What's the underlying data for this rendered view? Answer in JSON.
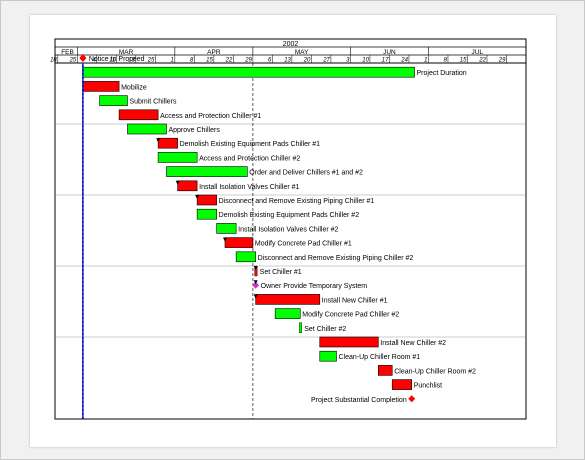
{
  "chart_data": {
    "type": "gantt",
    "year": "2002",
    "months": [
      {
        "label": "FEB",
        "start": "2002-02-17"
      },
      {
        "label": "MAR",
        "start": "2002-02-24"
      },
      {
        "label": "APR",
        "start": "2002-03-31"
      },
      {
        "label": "MAY",
        "start": "2002-04-28"
      },
      {
        "label": "JUN",
        "start": "2002-06-02"
      },
      {
        "label": "JUL",
        "start": "2002-06-30"
      }
    ],
    "week_ticks": [
      "18",
      "25",
      "4",
      "11",
      "18",
      "25",
      "1",
      "8",
      "15",
      "22",
      "29",
      "6",
      "13",
      "20",
      "27",
      "3",
      "10",
      "17",
      "24",
      "1",
      "8",
      "15",
      "22",
      "29"
    ],
    "x_range": [
      "2002-02-16",
      "2002-08-04"
    ],
    "status_line": "2002-02-26",
    "reference_line": "2002-04-28",
    "colors": {
      "complete": "#00ff00",
      "remaining": "#ff0000",
      "milestone": "#ff0000",
      "summary_milestone": "#cc33cc",
      "status_line": "#0000aa"
    },
    "tasks": [
      {
        "label": "Notice to Proceed",
        "type": "milestone",
        "date": "2002-02-26"
      },
      {
        "label": "Project Duration",
        "type": "bar",
        "start": "2002-02-26",
        "end": "2002-06-25",
        "color": "complete"
      },
      {
        "label": "Mobilize",
        "type": "bar",
        "start": "2002-02-26",
        "end": "2002-03-11",
        "color": "remaining"
      },
      {
        "label": "Submit Chillers",
        "type": "bar",
        "start": "2002-03-04",
        "end": "2002-03-14",
        "color": "complete"
      },
      {
        "label": "Access and Protection Chiller #1",
        "type": "bar",
        "start": "2002-03-11",
        "end": "2002-03-25",
        "color": "remaining"
      },
      {
        "label": "Approve Chillers",
        "type": "bar",
        "start": "2002-03-14",
        "end": "2002-03-28",
        "color": "complete"
      },
      {
        "label": "Demolish Existing Equipment Pads Chiller #1",
        "type": "bar",
        "start": "2002-03-25",
        "end": "2002-04-01",
        "color": "remaining"
      },
      {
        "label": "Access and Protection Chiller #2",
        "type": "bar",
        "start": "2002-03-25",
        "end": "2002-04-08",
        "color": "complete"
      },
      {
        "label": "Order and Deliver Chillers #1 and #2",
        "type": "bar",
        "start": "2002-03-28",
        "end": "2002-04-26",
        "color": "complete"
      },
      {
        "label": "Install Isolation Valves Chiller #1",
        "type": "bar",
        "start": "2002-04-01",
        "end": "2002-04-08",
        "color": "remaining"
      },
      {
        "label": "Disconnect and Remove Existing Piping Chiller #1",
        "type": "bar",
        "start": "2002-04-08",
        "end": "2002-04-15",
        "color": "remaining"
      },
      {
        "label": "Demolish Existing Equipment Pads Chiller #2",
        "type": "bar",
        "start": "2002-04-08",
        "end": "2002-04-15",
        "color": "complete"
      },
      {
        "label": "Install Isolation Valves Chiller #2",
        "type": "bar",
        "start": "2002-04-15",
        "end": "2002-04-22",
        "color": "complete"
      },
      {
        "label": "Modify Concrete Pad Chiller #1",
        "type": "bar",
        "start": "2002-04-18",
        "end": "2002-04-28",
        "color": "remaining"
      },
      {
        "label": "Disconnect and Remove Existing Piping Chiller #2",
        "type": "bar",
        "start": "2002-04-22",
        "end": "2002-04-29",
        "color": "complete"
      },
      {
        "label": "Set Chiller #1",
        "type": "milestone",
        "date": "2002-04-29",
        "color": "remaining"
      },
      {
        "label": "Owner Provide Temporary System",
        "type": "milestone",
        "date": "2002-04-29",
        "color": "summary_milestone"
      },
      {
        "label": "Install New Chiller #1",
        "type": "bar",
        "start": "2002-04-29",
        "end": "2002-05-22",
        "color": "remaining"
      },
      {
        "label": "Modify Concrete Pad Chiller #2",
        "type": "bar",
        "start": "2002-05-06",
        "end": "2002-05-15",
        "color": "complete"
      },
      {
        "label": "Set Chiller #2",
        "type": "milestone",
        "date": "2002-05-15",
        "color": "complete"
      },
      {
        "label": "Install New Chiller #2",
        "type": "bar",
        "start": "2002-05-22",
        "end": "2002-06-12",
        "color": "remaining"
      },
      {
        "label": "Clean-Up Chiller Room #1",
        "type": "bar",
        "start": "2002-05-22",
        "end": "2002-05-28",
        "color": "complete"
      },
      {
        "label": "Clean-Up Chiller Room #2",
        "type": "bar",
        "start": "2002-06-12",
        "end": "2002-06-17",
        "color": "remaining"
      },
      {
        "label": "Punchlist",
        "type": "bar",
        "start": "2002-06-17",
        "end": "2002-06-24",
        "color": "remaining"
      },
      {
        "label": "Project Substantial Completion",
        "type": "milestone",
        "date": "2002-06-24",
        "color": "remaining",
        "label_side": "left"
      }
    ]
  }
}
